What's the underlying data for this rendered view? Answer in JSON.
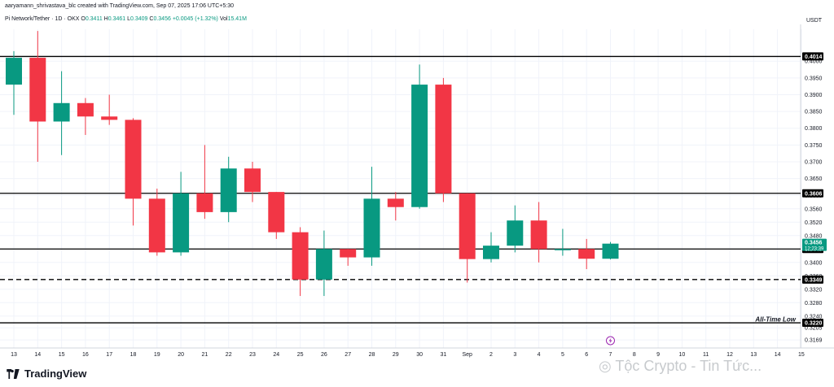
{
  "header": {
    "attribution": "aaryamann_shrivastava_blc created with TradingView.com, Sep 07, 2025 17:06 UTC+5:30",
    "symbol": "Pi Network/Tether · 1D · OKX",
    "open_label": "O",
    "open_value": "0.3411",
    "high_label": "H",
    "high_value": "0.3461",
    "low_label": "L",
    "low_value": "0.3409",
    "close_label": "C",
    "close_value": "0.3456",
    "change": "+0.0045 (+1.32%)",
    "volume_label": "Vol",
    "volume_value": "15.41M"
  },
  "currency_label": "USDT",
  "logo_text": "TradingView",
  "watermark_text": "Tộc Crypto - Tin Tức...",
  "colors": {
    "up": "#089981",
    "down": "#f23645",
    "level_line": "#000000",
    "axis_text": "#131722",
    "grid": "#f0f3fa"
  },
  "icons": [
    "tradingview-logo-icon",
    "lightning-event-icon",
    "watermark-logo-icon"
  ],
  "chart_data": {
    "type": "candlestick",
    "title": "",
    "xlabel": "",
    "ylabel": "",
    "ylim": [
      0.3145,
      0.4095
    ],
    "grid": true,
    "x": [
      "13",
      "14",
      "15",
      "16",
      "17",
      "18",
      "19",
      "20",
      "21",
      "22",
      "23",
      "24",
      "25",
      "26",
      "27",
      "28",
      "29",
      "30",
      "31",
      "Sep",
      "2",
      "3",
      "4",
      "5",
      "6",
      "7",
      "8",
      "9",
      "10",
      "11",
      "12",
      "13",
      "14",
      "15"
    ],
    "y_ticks": [
      "0.4000",
      "0.3950",
      "0.3900",
      "0.3850",
      "0.3800",
      "0.3750",
      "0.3700",
      "0.3650",
      "0.3600",
      "0.3560",
      "0.3520",
      "0.3480",
      "0.3440",
      "0.3400",
      "0.3360",
      "0.3320",
      "0.3280",
      "0.3240",
      "0.3205",
      "0.3169"
    ],
    "candles": [
      {
        "date": "13",
        "open": 0.393,
        "high": 0.403,
        "low": 0.384,
        "close": 0.401
      },
      {
        "date": "14",
        "open": 0.401,
        "high": 0.409,
        "low": 0.37,
        "close": 0.382
      },
      {
        "date": "15",
        "open": 0.382,
        "high": 0.397,
        "low": 0.372,
        "close": 0.3875
      },
      {
        "date": "16",
        "open": 0.3875,
        "high": 0.389,
        "low": 0.378,
        "close": 0.3835
      },
      {
        "date": "17",
        "open": 0.3835,
        "high": 0.39,
        "low": 0.381,
        "close": 0.3825
      },
      {
        "date": "18",
        "open": 0.3825,
        "high": 0.383,
        "low": 0.351,
        "close": 0.359
      },
      {
        "date": "19",
        "open": 0.359,
        "high": 0.362,
        "low": 0.342,
        "close": 0.343
      },
      {
        "date": "20",
        "open": 0.343,
        "high": 0.367,
        "low": 0.342,
        "close": 0.3606
      },
      {
        "date": "21",
        "open": 0.3606,
        "high": 0.375,
        "low": 0.353,
        "close": 0.355
      },
      {
        "date": "22",
        "open": 0.355,
        "high": 0.3715,
        "low": 0.352,
        "close": 0.368
      },
      {
        "date": "23",
        "open": 0.368,
        "high": 0.37,
        "low": 0.358,
        "close": 0.361
      },
      {
        "date": "24",
        "open": 0.361,
        "high": 0.361,
        "low": 0.347,
        "close": 0.349
      },
      {
        "date": "25",
        "open": 0.349,
        "high": 0.3505,
        "low": 0.33,
        "close": 0.3349
      },
      {
        "date": "26",
        "open": 0.3349,
        "high": 0.3495,
        "low": 0.33,
        "close": 0.344
      },
      {
        "date": "27",
        "open": 0.344,
        "high": 0.344,
        "low": 0.339,
        "close": 0.3415
      },
      {
        "date": "28",
        "open": 0.3415,
        "high": 0.3685,
        "low": 0.339,
        "close": 0.359
      },
      {
        "date": "29",
        "open": 0.359,
        "high": 0.361,
        "low": 0.3525,
        "close": 0.3565
      },
      {
        "date": "30",
        "open": 0.3565,
        "high": 0.399,
        "low": 0.356,
        "close": 0.393
      },
      {
        "date": "31",
        "open": 0.393,
        "high": 0.395,
        "low": 0.358,
        "close": 0.3606
      },
      {
        "date": "Sep",
        "open": 0.3606,
        "high": 0.3606,
        "low": 0.334,
        "close": 0.341
      },
      {
        "date": "2",
        "open": 0.341,
        "high": 0.349,
        "low": 0.34,
        "close": 0.345
      },
      {
        "date": "3",
        "open": 0.345,
        "high": 0.357,
        "low": 0.343,
        "close": 0.3525
      },
      {
        "date": "4",
        "open": 0.3525,
        "high": 0.358,
        "low": 0.34,
        "close": 0.344
      },
      {
        "date": "5",
        "open": 0.344,
        "high": 0.35,
        "low": 0.342,
        "close": 0.344
      },
      {
        "date": "6",
        "open": 0.344,
        "high": 0.347,
        "low": 0.338,
        "close": 0.3411
      },
      {
        "date": "7",
        "open": 0.3411,
        "high": 0.3461,
        "low": 0.3409,
        "close": 0.3456
      }
    ],
    "levels": [
      {
        "value": 0.4014,
        "label": "0.4014",
        "style": "solid"
      },
      {
        "value": 0.3606,
        "label": "0.3606",
        "style": "solid"
      },
      {
        "value": 0.344,
        "label": "0.3440",
        "style": "solid"
      },
      {
        "value": 0.3349,
        "label": "0.3349",
        "style": "dashed"
      },
      {
        "value": 0.322,
        "label": "0.3220",
        "style": "solid",
        "annotation": "All-Time Low"
      }
    ],
    "last_price": {
      "value": 0.3456,
      "label": "0.3456",
      "countdown": "12:23:39"
    }
  }
}
